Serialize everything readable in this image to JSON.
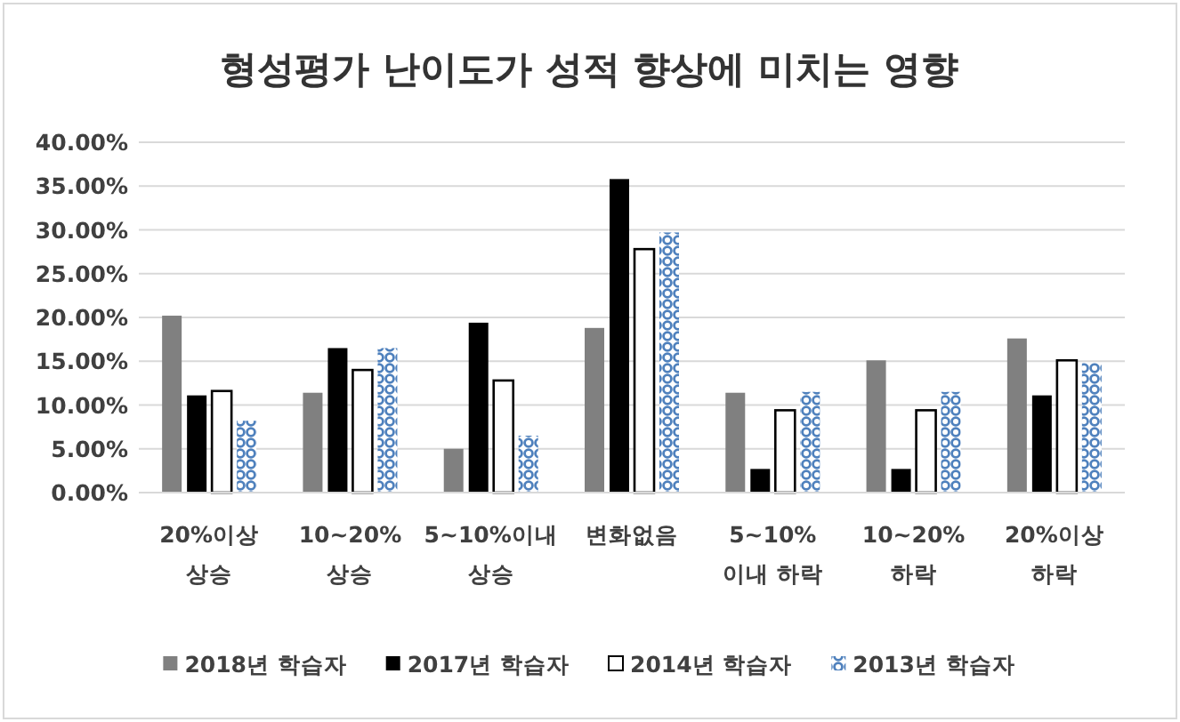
{
  "chart_data": {
    "type": "bar",
    "title": "형성평가 난이도가 성적 향상에 미치는 영향",
    "categories": [
      "20%이상 상승",
      "10~20% 상승",
      "5~10%이내 상승",
      "변화없음",
      "5~10% 이내 하락",
      "10~20% 하락",
      "20%이상 하락"
    ],
    "series": [
      {
        "name": "2018년 학습자",
        "color": "#808080",
        "values": [
          20.2,
          11.4,
          5.0,
          18.8,
          11.4,
          15.1,
          17.6
        ]
      },
      {
        "name": "2017년 학습자",
        "color": "#000000",
        "values": [
          11.1,
          16.5,
          19.4,
          35.8,
          2.7,
          2.7,
          11.1
        ]
      },
      {
        "name": "2014년 학습자",
        "color": "#ffffff",
        "values": [
          11.6,
          14.0,
          12.8,
          27.8,
          9.4,
          9.4,
          15.1
        ]
      },
      {
        "name": "2013년 학습자",
        "color": "#4f81bd",
        "values": [
          8.2,
          16.5,
          6.5,
          29.7,
          11.5,
          11.5,
          14.8
        ]
      }
    ],
    "ylim": [
      0,
      40
    ],
    "yticks": [
      {
        "value": 0,
        "label": "0.00%"
      },
      {
        "value": 5,
        "label": "5.00%"
      },
      {
        "value": 10,
        "label": "10.00%"
      },
      {
        "value": 15,
        "label": "15.00%"
      },
      {
        "value": 20,
        "label": "20.00%"
      },
      {
        "value": 25,
        "label": "25.00%"
      },
      {
        "value": 30,
        "label": "30.00%"
      },
      {
        "value": 35,
        "label": "35.00%"
      },
      {
        "value": 40,
        "label": "40.00%"
      }
    ],
    "grid": "y",
    "legend": "bottom"
  }
}
